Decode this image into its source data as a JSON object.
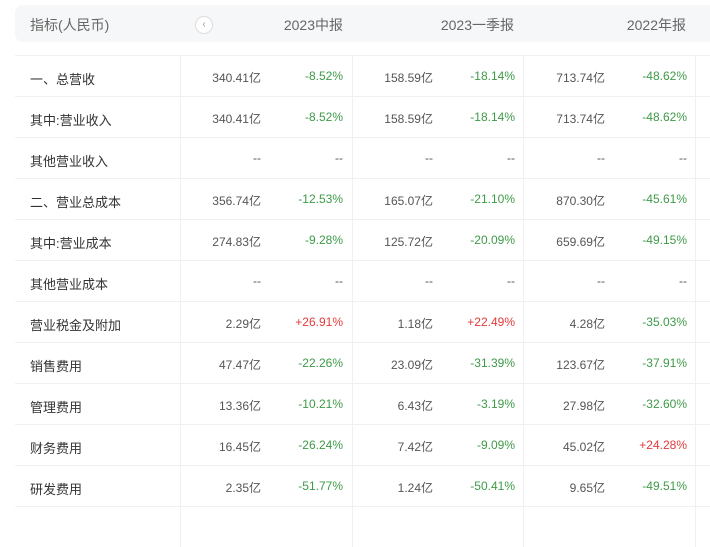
{
  "header": {
    "indicator": "指标(人民币)",
    "prev_icon": "chevron-left-icon",
    "periods": [
      "2023中报",
      "2023一季报",
      "2022年报"
    ]
  },
  "colors": {
    "negative": "#3e9a48",
    "positive": "#e53a3a"
  },
  "rows": [
    {
      "name": "一、总营收",
      "cells": [
        [
          "340.41亿",
          "-8.52%"
        ],
        [
          "158.59亿",
          "-18.14%"
        ],
        [
          "713.74亿",
          "-48.62%"
        ]
      ]
    },
    {
      "name": "其中:营业收入",
      "cells": [
        [
          "340.41亿",
          "-8.52%"
        ],
        [
          "158.59亿",
          "-18.14%"
        ],
        [
          "713.74亿",
          "-48.62%"
        ]
      ]
    },
    {
      "name": "其他营业收入",
      "cells": [
        [
          "--",
          "--"
        ],
        [
          "--",
          "--"
        ],
        [
          "--",
          "--"
        ]
      ]
    },
    {
      "name": "二、营业总成本",
      "cells": [
        [
          "356.74亿",
          "-12.53%"
        ],
        [
          "165.07亿",
          "-21.10%"
        ],
        [
          "870.30亿",
          "-45.61%"
        ]
      ]
    },
    {
      "name": "其中:营业成本",
      "cells": [
        [
          "274.83亿",
          "-9.28%"
        ],
        [
          "125.72亿",
          "-20.09%"
        ],
        [
          "659.69亿",
          "-49.15%"
        ]
      ]
    },
    {
      "name": "其他营业成本",
      "cells": [
        [
          "--",
          "--"
        ],
        [
          "--",
          "--"
        ],
        [
          "--",
          "--"
        ]
      ]
    },
    {
      "name": "营业税金及附加",
      "cells": [
        [
          "2.29亿",
          "+26.91%"
        ],
        [
          "1.18亿",
          "+22.49%"
        ],
        [
          "4.28亿",
          "-35.03%"
        ]
      ]
    },
    {
      "name": "销售费用",
      "cells": [
        [
          "47.47亿",
          "-22.26%"
        ],
        [
          "23.09亿",
          "-31.39%"
        ],
        [
          "123.67亿",
          "-37.91%"
        ]
      ]
    },
    {
      "name": "管理费用",
      "cells": [
        [
          "13.36亿",
          "-10.21%"
        ],
        [
          "6.43亿",
          "-3.19%"
        ],
        [
          "27.98亿",
          "-32.60%"
        ]
      ]
    },
    {
      "name": "财务费用",
      "cells": [
        [
          "16.45亿",
          "-26.24%"
        ],
        [
          "7.42亿",
          "-9.09%"
        ],
        [
          "45.02亿",
          "+24.28%"
        ]
      ]
    },
    {
      "name": "研发费用",
      "cells": [
        [
          "2.35亿",
          "-51.77%"
        ],
        [
          "1.24亿",
          "-50.41%"
        ],
        [
          "9.65亿",
          "-49.51%"
        ]
      ]
    },
    {
      "name": "",
      "cells": [
        [
          "",
          ""
        ],
        [
          "",
          ""
        ],
        [
          "",
          ""
        ]
      ]
    }
  ]
}
